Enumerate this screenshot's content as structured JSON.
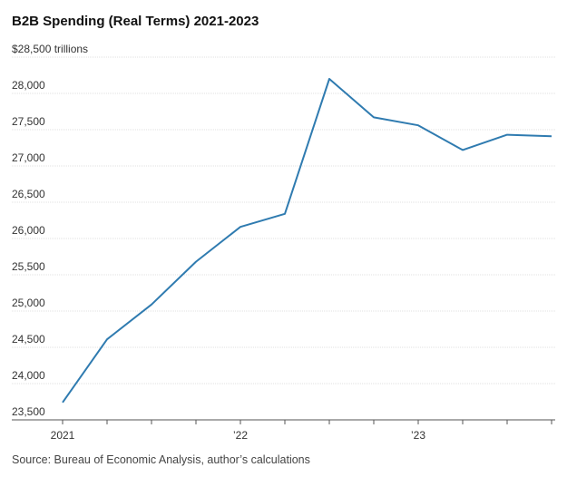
{
  "chart_data": {
    "type": "line",
    "title": "B2B Spending (Real Terms) 2021-2023",
    "source": "Source: Bureau of Economic Analysis, author’s calculations",
    "categories": [
      "2021",
      null,
      null,
      null,
      "’22",
      null,
      null,
      null,
      "’23",
      null,
      null,
      null
    ],
    "series": [
      {
        "name": "B2B Spending",
        "color": "#2f7bb0",
        "values": [
          23740,
          24610,
          25090,
          25680,
          26160,
          26340,
          28200,
          27670,
          27560,
          27220,
          27430,
          27410
        ]
      }
    ],
    "ylim": [
      23500,
      28500
    ],
    "yticks": [
      {
        "value": 23500,
        "label": "23,500"
      },
      {
        "value": 24000,
        "label": "24,000"
      },
      {
        "value": 24500,
        "label": "24,500"
      },
      {
        "value": 25000,
        "label": "25,000"
      },
      {
        "value": 25500,
        "label": "25,500"
      },
      {
        "value": 26000,
        "label": "26,000"
      },
      {
        "value": 26500,
        "label": "26,500"
      },
      {
        "value": 27000,
        "label": "27,000"
      },
      {
        "value": 27500,
        "label": "27,500"
      },
      {
        "value": 28000,
        "label": "28,000"
      },
      {
        "value": 28500,
        "label": "$28,500 trillions"
      }
    ],
    "grid": true
  }
}
